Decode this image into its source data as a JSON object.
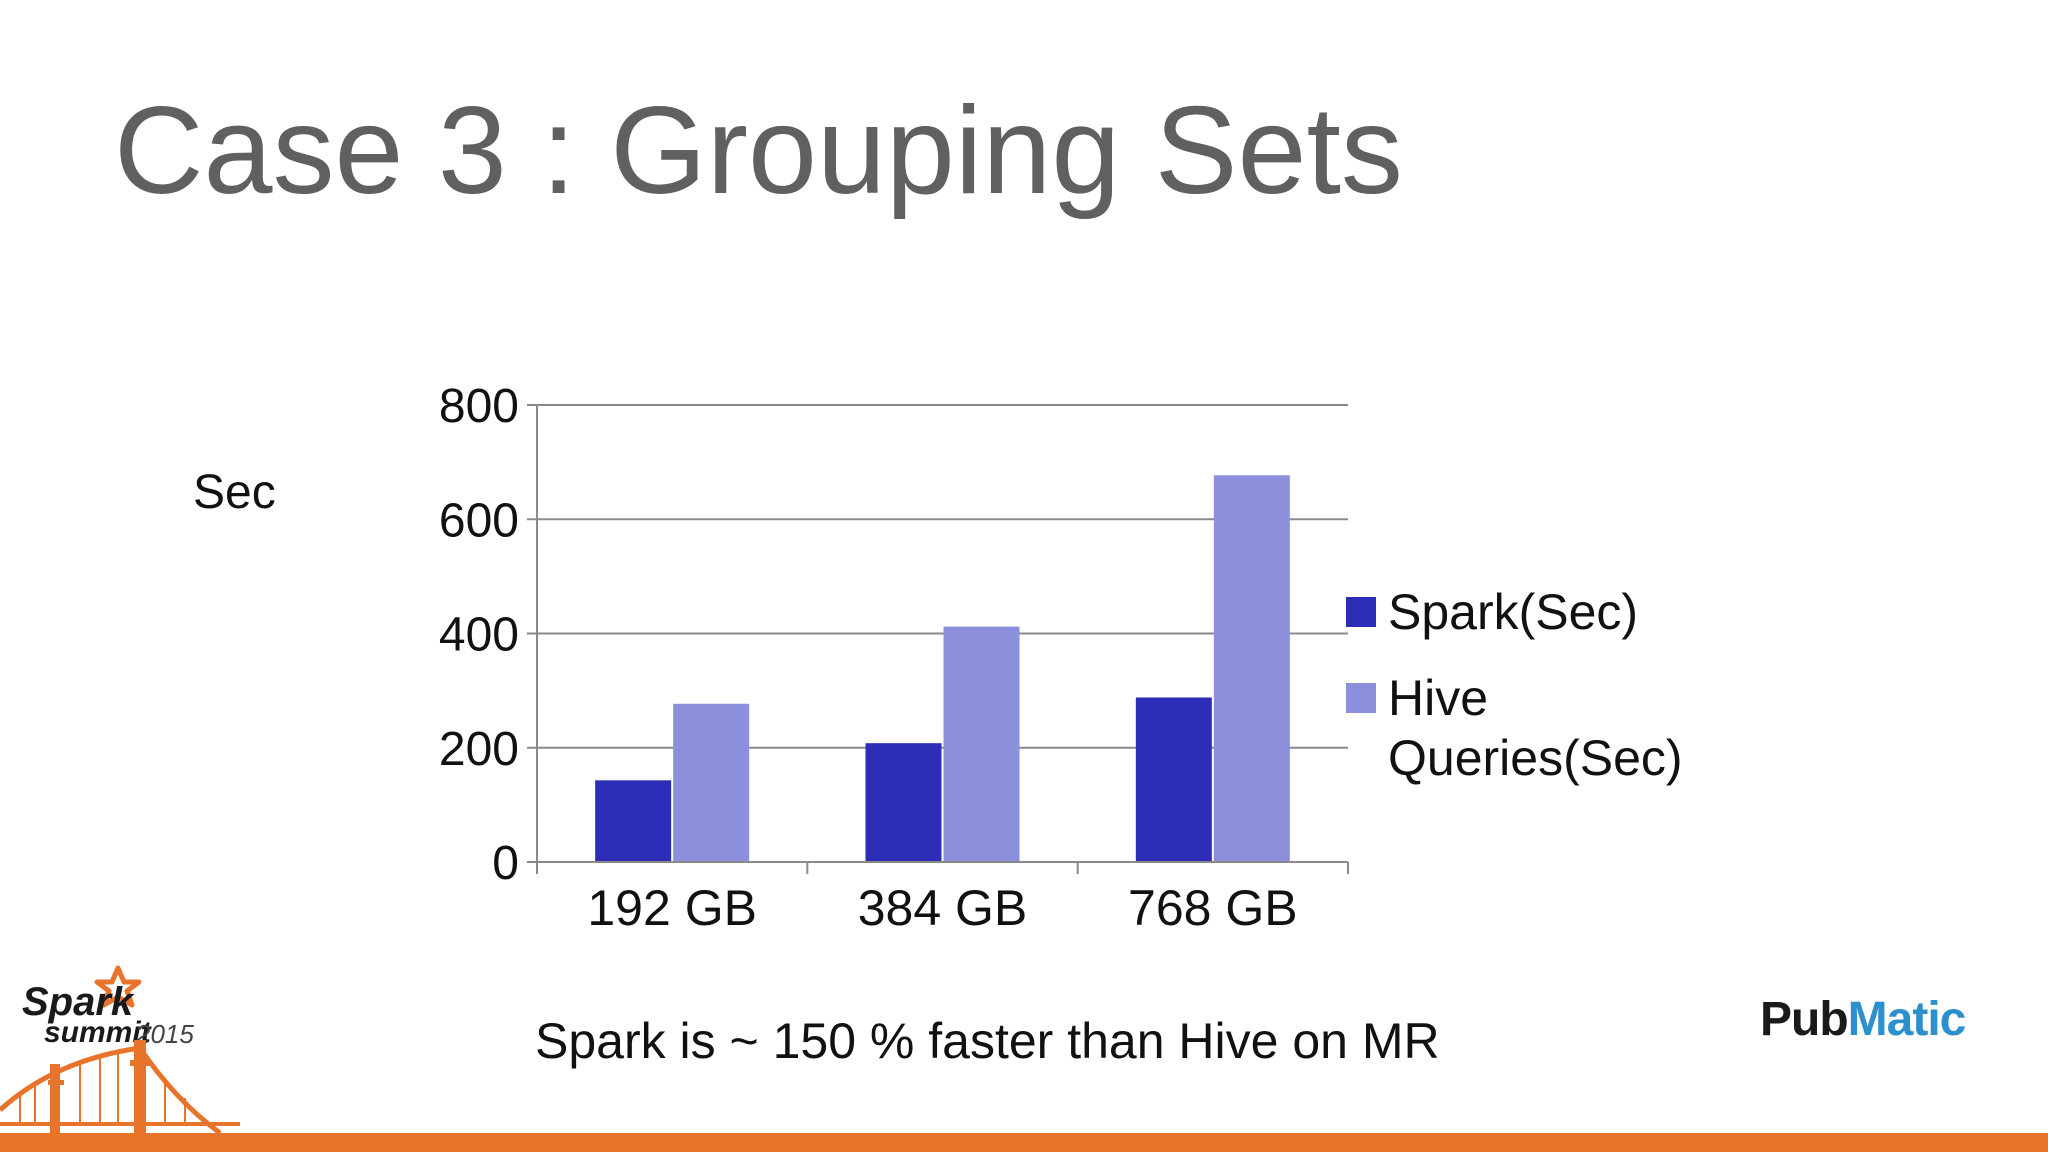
{
  "slide": {
    "title": "Case 3 : Grouping Sets",
    "caption": "Spark is ~ 150 % faster than Hive on MR"
  },
  "branding": {
    "spark_word": "Spark",
    "summit_word": "summit",
    "summit_year": "2015",
    "pubmatic_pub": "Pub",
    "pubmatic_matic": "Matic",
    "accent_orange": "#e8742c",
    "pubmatic_blue": "#2c8fce"
  },
  "chart_data": {
    "type": "bar",
    "title": "",
    "xlabel": "",
    "ylabel": "Sec",
    "categories": [
      "192 GB",
      "384 GB",
      "768 GB"
    ],
    "series": [
      {
        "name": "Spark(Sec)",
        "values": [
          143,
          208,
          288
        ],
        "color": "#2e2db7"
      },
      {
        "name": "Hive Queries(Sec)",
        "values": [
          277,
          412,
          677
        ],
        "color": "#8c8fdb"
      }
    ],
    "ylim": [
      0,
      800
    ],
    "yticks": [
      0,
      200,
      400,
      600,
      800
    ],
    "grid": true,
    "legend": "right"
  }
}
